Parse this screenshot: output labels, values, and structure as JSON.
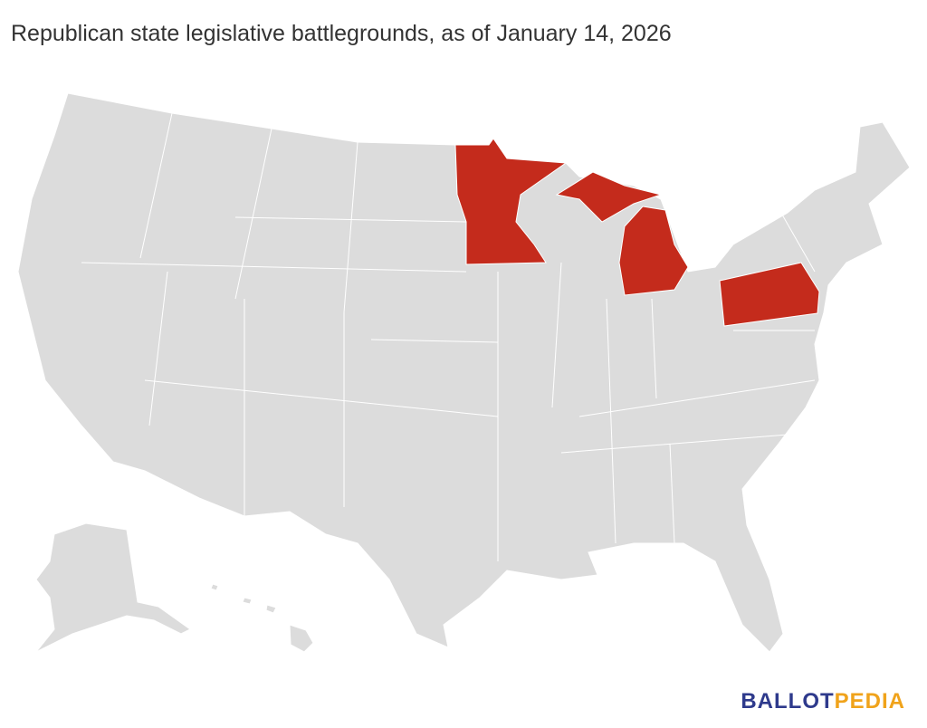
{
  "header": {
    "title": "Republican state legislative battlegrounds, as of January 14, 2026"
  },
  "map": {
    "base_color": "#dcdcdc",
    "highlight_color": "#c42b1c",
    "border_color": "#ffffff"
  },
  "logo": {
    "parts": [
      {
        "text": "BALLOT",
        "color": "#2e3a8c"
      },
      {
        "text": "PEDIA",
        "color": "#f0a31b"
      }
    ]
  }
}
